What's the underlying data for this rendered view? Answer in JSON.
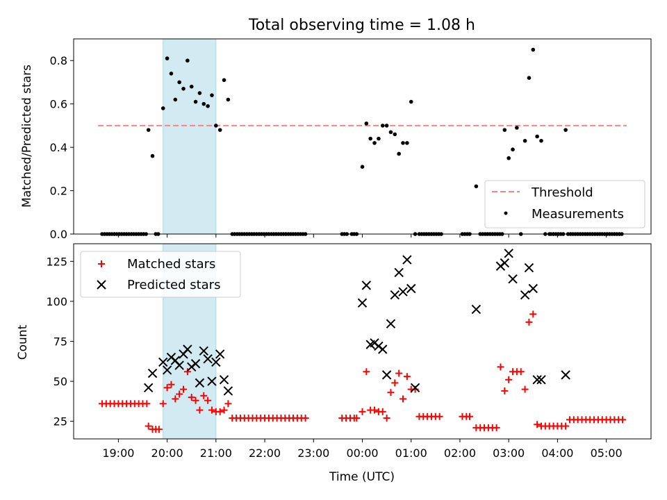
{
  "chart_data": [
    {
      "type": "scatter",
      "title": "Total observing time = 1.08 h",
      "xlabel": "",
      "ylabel": "Matched/Predicted stars",
      "ylim": [
        0,
        0.9
      ],
      "yticks": [
        0.0,
        0.2,
        0.4,
        0.6,
        0.8
      ],
      "ytick_labels": [
        "0.0",
        "0.2",
        "0.4",
        "0.6",
        "0.8"
      ],
      "highlight_span": [
        "19:55",
        "21:00"
      ],
      "highlight_color": "#add8e6",
      "threshold": {
        "name": "Threshold",
        "value": 0.5,
        "x_range": [
          "18:35",
          "05:25"
        ],
        "color": "#ff8080"
      },
      "legend": {
        "position": "lower-right"
      },
      "series": [
        {
          "name": "Measurements",
          "color": "#000000",
          "marker": "dot",
          "x": [
            "18:40",
            "18:43",
            "18:46",
            "18:49",
            "18:52",
            "18:55",
            "18:58",
            "19:01",
            "19:04",
            "19:07",
            "19:10",
            "19:13",
            "19:16",
            "19:19",
            "19:22",
            "19:25",
            "19:28",
            "19:31",
            "19:34",
            "19:37",
            "19:42",
            "19:46",
            "19:49",
            "19:55",
            "20:00",
            "20:05",
            "20:10",
            "20:15",
            "20:20",
            "20:25",
            "20:30",
            "20:35",
            "20:40",
            "20:45",
            "20:50",
            "20:55",
            "21:00",
            "21:05",
            "21:10",
            "21:15",
            "21:20",
            "21:23",
            "21:26",
            "21:29",
            "21:32",
            "21:35",
            "21:38",
            "21:41",
            "21:44",
            "21:47",
            "21:50",
            "21:53",
            "21:56",
            "21:59",
            "22:02",
            "22:05",
            "22:08",
            "22:11",
            "22:14",
            "22:17",
            "22:20",
            "22:23",
            "22:26",
            "22:29",
            "22:32",
            "22:35",
            "22:38",
            "22:41",
            "22:44",
            "22:47",
            "22:50",
            "23:35",
            "23:38",
            "23:41",
            "23:47",
            "23:50",
            "23:53",
            "00:00",
            "00:05",
            "00:10",
            "00:15",
            "00:20",
            "00:25",
            "00:30",
            "00:35",
            "00:40",
            "00:45",
            "00:50",
            "00:55",
            "01:00",
            "01:05",
            "01:10",
            "01:13",
            "01:16",
            "01:19",
            "01:22",
            "01:25",
            "01:28",
            "01:31",
            "01:34",
            "01:37",
            "02:03",
            "02:06",
            "02:09",
            "02:12",
            "02:20",
            "02:25",
            "02:28",
            "02:31",
            "02:34",
            "02:37",
            "02:40",
            "02:43",
            "02:46",
            "02:49",
            "02:52",
            "02:55",
            "03:00",
            "03:05",
            "03:10",
            "03:15",
            "03:20",
            "03:25",
            "03:30",
            "03:35",
            "03:40",
            "03:45",
            "03:50",
            "03:52",
            "03:55",
            "03:58",
            "04:01",
            "04:04",
            "04:07",
            "04:10",
            "04:13",
            "04:16",
            "04:19",
            "04:22",
            "04:25",
            "04:28",
            "04:31",
            "04:34",
            "04:37",
            "04:40",
            "04:43",
            "04:46",
            "04:49",
            "04:52",
            "04:55",
            "04:58",
            "05:01",
            "05:04",
            "05:07",
            "05:10",
            "05:13",
            "05:16",
            "05:19"
          ],
          "y": [
            0,
            0,
            0,
            0,
            0,
            0,
            0,
            0,
            0,
            0,
            0,
            0,
            0,
            0,
            0,
            0,
            0,
            0,
            0,
            0.48,
            0.36,
            0,
            0,
            0.58,
            0.81,
            0.74,
            0.62,
            0.7,
            0.67,
            0.8,
            0.68,
            0.61,
            0.65,
            0.6,
            0.59,
            0.64,
            0.5,
            0.48,
            0.71,
            0.62,
            0,
            0,
            0,
            0,
            0,
            0,
            0,
            0,
            0,
            0,
            0,
            0,
            0,
            0,
            0,
            0,
            0,
            0,
            0,
            0,
            0,
            0,
            0,
            0,
            0,
            0,
            0,
            0,
            0,
            0,
            0,
            0,
            0,
            0,
            0,
            0,
            0,
            0.31,
            0.51,
            0.44,
            0.42,
            0.44,
            0.5,
            0.5,
            0.47,
            0.46,
            0.37,
            0.42,
            0.42,
            0.61,
            0,
            0,
            0,
            0,
            0,
            0,
            0,
            0,
            0,
            0,
            0,
            0,
            0,
            0,
            0,
            0.22,
            0,
            0,
            0,
            0,
            0,
            0,
            0,
            0,
            0,
            0,
            0.48,
            0.35,
            0.39,
            0.49,
            0,
            0.43,
            0.72,
            0.85,
            0.45,
            0.43,
            0,
            0,
            0,
            0,
            0,
            0,
            0,
            0,
            0.48,
            0,
            0,
            0,
            0,
            0,
            0,
            0,
            0,
            0,
            0,
            0,
            0,
            0,
            0,
            0,
            0,
            0,
            0,
            0,
            0,
            0,
            0,
            0
          ]
        }
      ]
    },
    {
      "type": "scatter",
      "title": "",
      "xlabel": "Time (UTC)",
      "ylabel": "Count",
      "ylim": [
        14,
        136
      ],
      "yticks": [
        25,
        50,
        75,
        100,
        125
      ],
      "ytick_labels": [
        "25",
        "50",
        "75",
        "100",
        "125"
      ],
      "xlim": [
        "18:05",
        "05:55"
      ],
      "xticks": [
        "19:00",
        "20:00",
        "21:00",
        "22:00",
        "23:00",
        "00:00",
        "01:00",
        "02:00",
        "03:00",
        "04:00",
        "05:00"
      ],
      "xtick_labels": [
        "19:00",
        "20:00",
        "21:00",
        "22:00",
        "23:00",
        "00:00",
        "01:00",
        "02:00",
        "03:00",
        "04:00",
        "05:00"
      ],
      "highlight_span": [
        "19:55",
        "21:00"
      ],
      "highlight_color": "#add8e6",
      "legend": {
        "position": "upper-left"
      },
      "series": [
        {
          "name": "Matched stars",
          "color": "#ff0000",
          "marker": "plus",
          "x": [
            "18:40",
            "18:45",
            "18:50",
            "18:55",
            "19:00",
            "19:05",
            "19:10",
            "19:15",
            "19:20",
            "19:25",
            "19:30",
            "19:35",
            "19:37",
            "19:42",
            "19:46",
            "19:50",
            "19:55",
            "20:00",
            "20:05",
            "20:10",
            "20:15",
            "20:20",
            "20:25",
            "20:30",
            "20:35",
            "20:40",
            "20:45",
            "20:50",
            "20:55",
            "21:00",
            "21:05",
            "21:10",
            "21:15",
            "21:20",
            "21:25",
            "21:30",
            "21:35",
            "21:40",
            "21:45",
            "21:50",
            "21:55",
            "22:00",
            "22:05",
            "22:10",
            "22:15",
            "22:20",
            "22:25",
            "22:30",
            "22:35",
            "22:40",
            "22:45",
            "22:50",
            "23:35",
            "23:40",
            "23:45",
            "23:50",
            "23:53",
            "00:00",
            "00:05",
            "00:10",
            "00:15",
            "00:20",
            "00:25",
            "00:30",
            "00:35",
            "00:40",
            "00:45",
            "00:50",
            "00:55",
            "01:00",
            "01:05",
            "01:10",
            "01:15",
            "01:20",
            "01:25",
            "01:30",
            "01:35",
            "02:03",
            "02:08",
            "02:12",
            "02:20",
            "02:25",
            "02:30",
            "02:35",
            "02:40",
            "02:45",
            "02:50",
            "02:55",
            "03:00",
            "03:05",
            "03:10",
            "03:15",
            "03:20",
            "03:25",
            "03:30",
            "03:35",
            "03:40",
            "03:45",
            "03:50",
            "03:55",
            "04:00",
            "04:05",
            "04:10",
            "04:15",
            "04:20",
            "04:25",
            "04:30",
            "04:35",
            "04:40",
            "04:45",
            "04:50",
            "04:55",
            "05:00",
            "05:05",
            "05:10",
            "05:15",
            "05:20"
          ],
          "y": [
            36,
            36,
            36,
            36,
            36,
            36,
            36,
            36,
            36,
            36,
            36,
            36,
            22,
            20,
            20,
            20,
            36,
            46,
            48,
            39,
            42,
            45,
            56,
            40,
            38,
            32,
            41,
            38,
            32,
            31,
            31,
            32,
            36,
            27,
            27,
            27,
            27,
            27,
            27,
            27,
            27,
            27,
            27,
            27,
            27,
            27,
            27,
            27,
            27,
            27,
            27,
            27,
            27,
            27,
            27,
            27,
            27,
            31,
            56,
            32,
            32,
            31,
            31,
            27,
            43,
            49,
            55,
            39,
            53,
            45,
            45,
            28,
            28,
            28,
            28,
            28,
            28,
            28,
            28,
            28,
            21,
            21,
            21,
            21,
            21,
            21,
            59,
            44,
            51,
            56,
            56,
            56,
            45,
            87,
            92,
            23,
            22,
            22,
            22,
            22,
            22,
            22,
            22,
            26,
            26,
            26,
            26,
            26,
            26,
            26,
            26,
            26,
            26,
            26,
            26,
            26,
            26
          ]
        },
        {
          "name": "Predicted stars",
          "color": "#000000",
          "marker": "x",
          "x": [
            "19:37",
            "19:42",
            "19:55",
            "20:00",
            "20:05",
            "20:10",
            "20:15",
            "20:20",
            "20:25",
            "20:30",
            "20:35",
            "20:40",
            "20:45",
            "20:50",
            "20:55",
            "21:00",
            "21:05",
            "21:10",
            "21:15",
            "00:00",
            "00:05",
            "00:10",
            "00:15",
            "00:20",
            "00:25",
            "00:30",
            "00:35",
            "00:40",
            "00:45",
            "00:50",
            "00:55",
            "01:00",
            "01:05",
            "02:20",
            "02:50",
            "02:55",
            "03:00",
            "03:05",
            "03:20",
            "03:25",
            "03:30",
            "03:35",
            "03:40",
            "04:10"
          ],
          "y": [
            46,
            55,
            62,
            57,
            65,
            63,
            60,
            67,
            70,
            59,
            61,
            49,
            69,
            64,
            50,
            62,
            67,
            51,
            44,
            99,
            110,
            73,
            74,
            72,
            70,
            54,
            86,
            104,
            118,
            106,
            126,
            108,
            46,
            95,
            122,
            124,
            130,
            114,
            104,
            121,
            108,
            51,
            51,
            54
          ]
        }
      ]
    }
  ]
}
